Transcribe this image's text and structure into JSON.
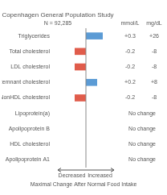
{
  "chart_data": {
    "type": "bar",
    "orientation": "horizontal",
    "title": "Copenhagen General Population Study",
    "subtitle": "N = 92,285",
    "categories": [
      "Triglycerides",
      "Total cholesterol",
      "LDL cholesterol",
      "Remnant cholesterol",
      "NonHDL cholesterol",
      "Lipoprotein(a)",
      "Apolipoprotein B",
      "HDL cholesterol",
      "Apolipoprotein A1"
    ],
    "values": [
      0.3,
      -0.2,
      -0.2,
      0.2,
      -0.2,
      0,
      0,
      0,
      0
    ],
    "colors": [
      "#5b9bd5",
      "#e05c4b",
      "#e05c4b",
      "#5b9bd5",
      "#e05c4b",
      null,
      null,
      null,
      null
    ],
    "data_labels": true,
    "value_labels": [
      "+0.3",
      "-0.2",
      "-0.2",
      "+0.2",
      "-0.2",
      "No change",
      "No change",
      "No change",
      "No change"
    ],
    "value_labels_mgdl": [
      "+26",
      "-8",
      "-8",
      "+8",
      "-8",
      null,
      null,
      null,
      null
    ],
    "column_headers": [
      "mmol/L",
      "mg/dL"
    ],
    "annotations": [
      "Decreased",
      "Increased"
    ],
    "xlabel": "Maximal Change After Normal Food Intake",
    "xlim": [
      -0.5,
      0.5
    ],
    "grid": false,
    "tick_labels": "y"
  }
}
